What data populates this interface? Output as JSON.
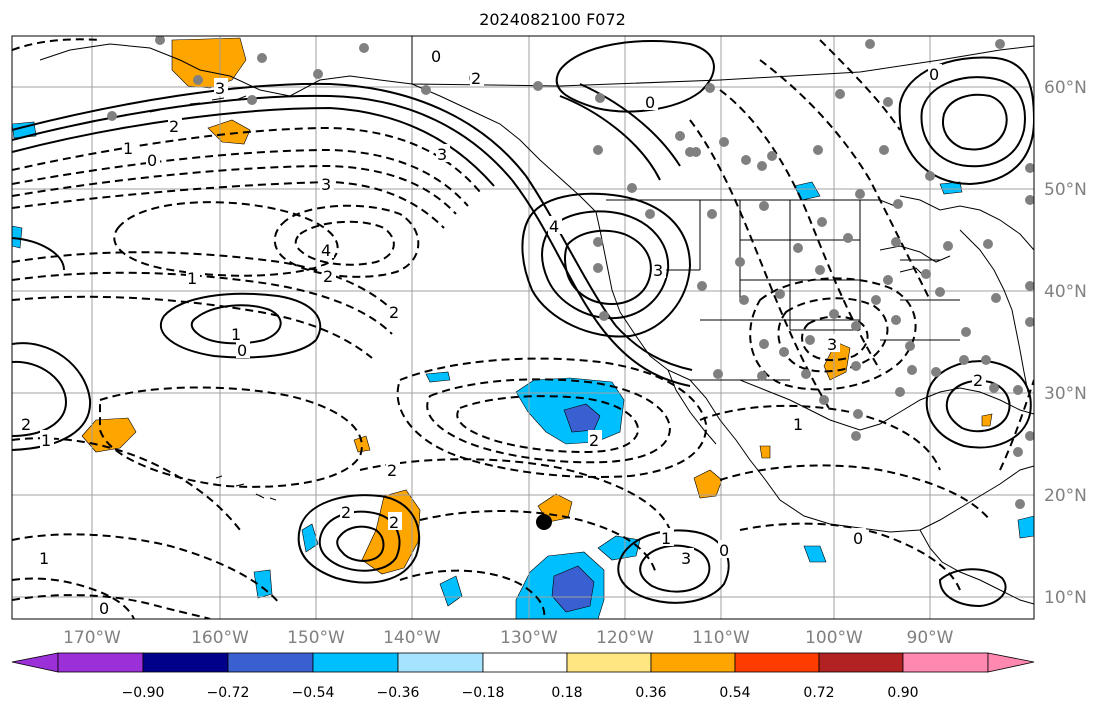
{
  "title": "2024082100 F072",
  "map": {
    "lon_labels": [
      "170°W",
      "160°W",
      "150°W",
      "140°W",
      "130°W",
      "120°W",
      "110°W",
      "100°W",
      "90°W"
    ],
    "lat_labels": [
      "60°N",
      "50°N",
      "40°N",
      "30°N",
      "20°N",
      "10°N"
    ],
    "gridline_color": "#a0a0a0",
    "land_outline_color": "#000000",
    "station_color": "#808080"
  },
  "contour_labels": [
    {
      "text": "0",
      "kind": "dashed"
    },
    {
      "text": "3",
      "kind": "solid"
    },
    {
      "text": "2",
      "kind": "solid"
    },
    {
      "text": "1",
      "kind": "solid"
    },
    {
      "text": "0",
      "kind": "dashed"
    },
    {
      "text": "3",
      "kind": "dashed"
    },
    {
      "text": "4",
      "kind": "dashed"
    },
    {
      "text": "2",
      "kind": "dashed"
    },
    {
      "text": "1",
      "kind": "dashed"
    },
    {
      "text": "1",
      "kind": "solid"
    },
    {
      "text": "0",
      "kind": "dashed"
    },
    {
      "text": "3",
      "kind": "solid"
    },
    {
      "text": "4",
      "kind": "solid"
    },
    {
      "text": "2",
      "kind": "dashed"
    },
    {
      "text": "2",
      "kind": "solid"
    },
    {
      "text": "1",
      "kind": "solid"
    },
    {
      "text": "2",
      "kind": "solid"
    },
    {
      "text": "2",
      "kind": "dashed"
    },
    {
      "text": "1",
      "kind": "solid"
    },
    {
      "text": "3",
      "kind": "solid"
    },
    {
      "text": "0",
      "kind": "solid"
    },
    {
      "text": "3",
      "kind": "dashed"
    },
    {
      "text": "3",
      "kind": "dashed"
    },
    {
      "text": "2",
      "kind": "dashed"
    },
    {
      "text": "0",
      "kind": "dashed"
    },
    {
      "text": "1",
      "kind": "dashed"
    },
    {
      "text": "2",
      "kind": "solid"
    },
    {
      "text": "1",
      "kind": "dashed"
    },
    {
      "text": "0",
      "kind": "dashed"
    },
    {
      "text": "2",
      "kind": "dashed"
    },
    {
      "text": "0",
      "kind": "solid"
    },
    {
      "text": "0",
      "kind": "dashed"
    },
    {
      "text": "2",
      "kind": "solid"
    }
  ],
  "colorbar": {
    "colors": [
      "#9b30d9",
      "#00008b",
      "#3a5fd0",
      "#00bfff",
      "#a6e3ff",
      "#ffffff",
      "#ffe680",
      "#ffa500",
      "#ff3c00",
      "#b22222",
      "#ff88b0"
    ],
    "tick_labels": [
      "−0.90",
      "−0.72",
      "−0.54",
      "−0.36",
      "−0.18",
      "0.18",
      "0.36",
      "0.54",
      "0.72",
      "0.90"
    ]
  }
}
